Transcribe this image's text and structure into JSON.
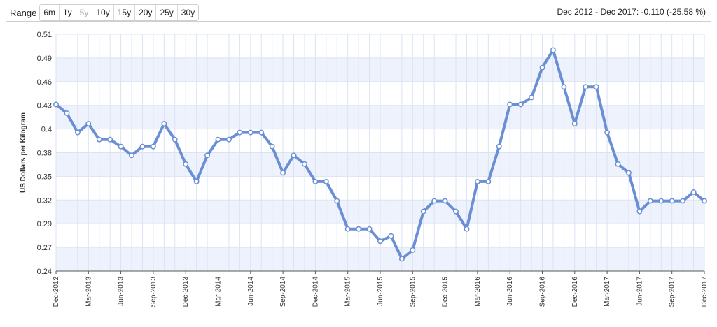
{
  "range": {
    "label": "Range",
    "buttons": [
      {
        "label": "6m",
        "enabled": true
      },
      {
        "label": "1y",
        "enabled": true
      },
      {
        "label": "5y",
        "enabled": false
      },
      {
        "label": "10y",
        "enabled": true
      },
      {
        "label": "15y",
        "enabled": true
      },
      {
        "label": "20y",
        "enabled": true
      },
      {
        "label": "25y",
        "enabled": true
      },
      {
        "label": "30y",
        "enabled": true
      }
    ]
  },
  "summary": "Dec 2012 - Dec 2017: -0.110 (-25.58 %)",
  "colors": {
    "line": "#6b8fd4",
    "band": "#eef2fc",
    "grid": "#dbe3f3",
    "marker_fill": "#ffffff"
  },
  "chart_data": {
    "type": "line",
    "title": "",
    "xlabel": "",
    "ylabel": "US Dollars per Kilogram",
    "ylim": [
      0.24,
      0.51
    ],
    "yticks": [
      "0.24",
      "0.27",
      "0.29",
      "0.32",
      "0.35",
      "0.38",
      "0.4",
      "0.43",
      "0.46",
      "0.49",
      "0.51"
    ],
    "xtick_labels": [
      "Dec-2012",
      "Mar-2013",
      "Jun-2013",
      "Sep-2013",
      "Dec-2013",
      "Mar-2014",
      "Jun-2014",
      "Sep-2014",
      "Dec-2014",
      "Mar-2015",
      "Jun-2015",
      "Sep-2015",
      "Dec-2015",
      "Mar-2016",
      "Jun-2016",
      "Sep-2016",
      "Dec-2016",
      "Mar-2017",
      "Jun-2017",
      "Sep-2017",
      "Dec-2017"
    ],
    "x_start": "Dec-2012",
    "x_end": "Dec-2017",
    "grid": true,
    "series": [
      {
        "name": "",
        "values": [
          0.43,
          0.42,
          0.398,
          0.408,
          0.39,
          0.39,
          0.382,
          0.372,
          0.382,
          0.382,
          0.408,
          0.39,
          0.362,
          0.342,
          0.372,
          0.39,
          0.39,
          0.398,
          0.398,
          0.398,
          0.382,
          0.352,
          0.372,
          0.362,
          0.342,
          0.342,
          0.32,
          0.288,
          0.288,
          0.288,
          0.274,
          0.28,
          0.254,
          0.264,
          0.308,
          0.32,
          0.32,
          0.308,
          0.288,
          0.342,
          0.342,
          0.382,
          0.43,
          0.43,
          0.438,
          0.472,
          0.492,
          0.45,
          0.408,
          0.45,
          0.45,
          0.398,
          0.362,
          0.352,
          0.308,
          0.32,
          0.32,
          0.32,
          0.32,
          0.33,
          0.32
        ]
      }
    ]
  }
}
